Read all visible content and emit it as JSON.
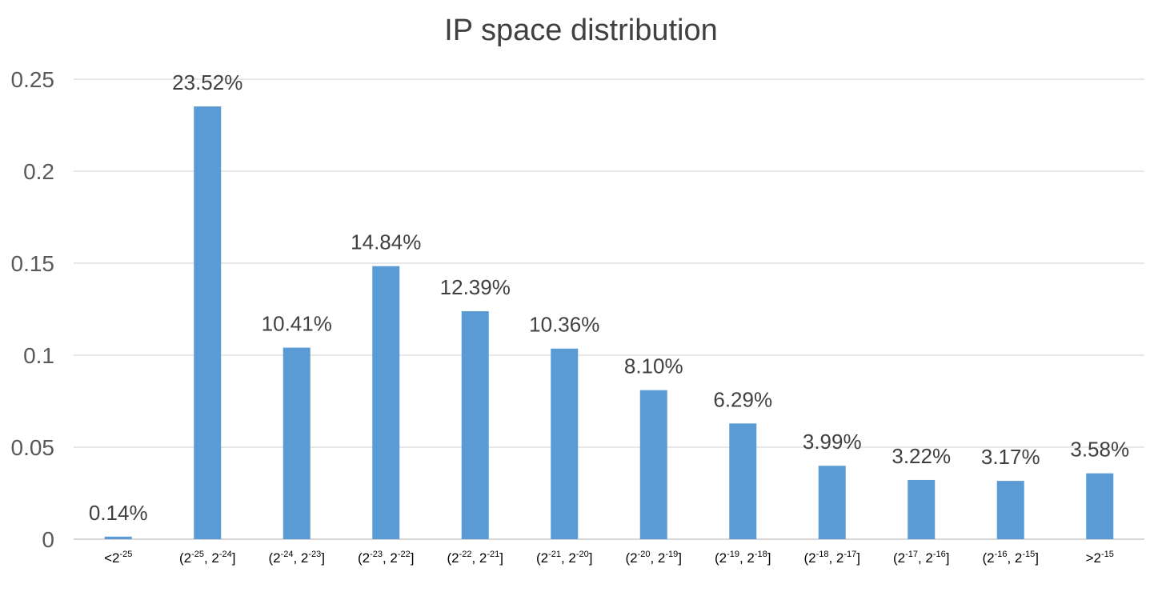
{
  "chart_data": {
    "type": "bar",
    "title": "IP space distribution",
    "xlabel": "",
    "ylabel": "",
    "ylim": [
      0,
      0.25
    ],
    "yticks": [
      "0",
      "0.05",
      "0.1",
      "0.15",
      "0.2",
      "0.25"
    ],
    "grid": true,
    "legend": "none",
    "bar_color": "#5b9bd5",
    "categories": [
      {
        "parts": [
          {
            "t": "<2"
          },
          {
            "t": "-25",
            "sup": true
          }
        ]
      },
      {
        "parts": [
          {
            "t": "(2"
          },
          {
            "t": "-25",
            "sup": true
          },
          {
            "t": ", 2"
          },
          {
            "t": "-24",
            "sup": true
          },
          {
            "t": "]"
          }
        ]
      },
      {
        "parts": [
          {
            "t": "(2"
          },
          {
            "t": "-24",
            "sup": true
          },
          {
            "t": ", 2"
          },
          {
            "t": "-23",
            "sup": true
          },
          {
            "t": "]"
          }
        ]
      },
      {
        "parts": [
          {
            "t": "(2"
          },
          {
            "t": "-23",
            "sup": true
          },
          {
            "t": ", 2"
          },
          {
            "t": "-22",
            "sup": true
          },
          {
            "t": "]"
          }
        ]
      },
      {
        "parts": [
          {
            "t": "(2"
          },
          {
            "t": "-22",
            "sup": true
          },
          {
            "t": ", 2"
          },
          {
            "t": "-21",
            "sup": true
          },
          {
            "t": "]"
          }
        ]
      },
      {
        "parts": [
          {
            "t": "(2"
          },
          {
            "t": "-21",
            "sup": true
          },
          {
            "t": ", 2"
          },
          {
            "t": "-20",
            "sup": true
          },
          {
            "t": "]"
          }
        ]
      },
      {
        "parts": [
          {
            "t": "(2"
          },
          {
            "t": "-20",
            "sup": true
          },
          {
            "t": ", 2"
          },
          {
            "t": "-19",
            "sup": true
          },
          {
            "t": "]"
          }
        ]
      },
      {
        "parts": [
          {
            "t": "(2"
          },
          {
            "t": "-19",
            "sup": true
          },
          {
            "t": ", 2"
          },
          {
            "t": "-18",
            "sup": true
          },
          {
            "t": "]"
          }
        ]
      },
      {
        "parts": [
          {
            "t": "(2"
          },
          {
            "t": "-18",
            "sup": true
          },
          {
            "t": ", 2"
          },
          {
            "t": "-17",
            "sup": true
          },
          {
            "t": "]"
          }
        ]
      },
      {
        "parts": [
          {
            "t": "(2"
          },
          {
            "t": "-17",
            "sup": true
          },
          {
            "t": ", 2"
          },
          {
            "t": "-16",
            "sup": true
          },
          {
            "t": "]"
          }
        ]
      },
      {
        "parts": [
          {
            "t": "(2"
          },
          {
            "t": "-16",
            "sup": true
          },
          {
            "t": ", 2"
          },
          {
            "t": "-15",
            "sup": true
          },
          {
            "t": "]"
          }
        ]
      },
      {
        "parts": [
          {
            "t": ">2"
          },
          {
            "t": "-15",
            "sup": true
          }
        ]
      }
    ],
    "values": [
      0.0014,
      0.2352,
      0.1041,
      0.1484,
      0.1239,
      0.1036,
      0.081,
      0.0629,
      0.0399,
      0.0322,
      0.0317,
      0.0358
    ],
    "data_labels": [
      "0.14%",
      "23.52%",
      "10.41%",
      "14.84%",
      "12.39%",
      "10.36%",
      "8.10%",
      "6.29%",
      "3.99%",
      "3.22%",
      "3.17%",
      "3.58%"
    ]
  }
}
